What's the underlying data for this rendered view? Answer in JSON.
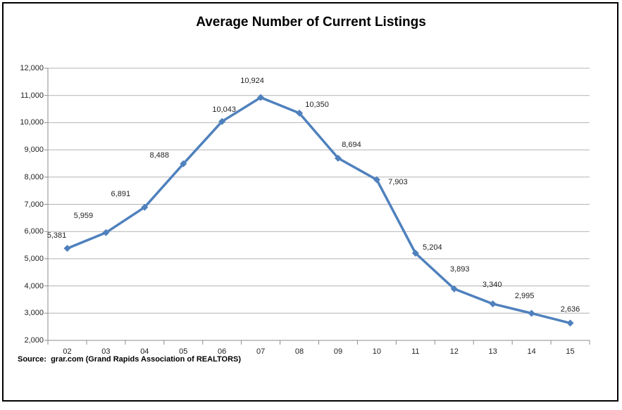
{
  "source": "Source:  grar.com (Grand Rapids Association of REALTORS)",
  "chart_data": {
    "type": "line",
    "title": "Average Number of Current Listings",
    "categories": [
      "02",
      "03",
      "04",
      "05",
      "06",
      "07",
      "08",
      "09",
      "10",
      "11",
      "12",
      "13",
      "14",
      "15"
    ],
    "values": [
      5381,
      5959,
      6891,
      8488,
      10043,
      10924,
      10350,
      8694,
      7903,
      5204,
      3893,
      3340,
      2995,
      2636
    ],
    "data_labels": [
      "5,381",
      "5,959",
      "6,891",
      "8,488",
      "10,043",
      "10,924",
      "10,350",
      "8,694",
      "7,903",
      "5,204",
      "3,893",
      "3,340",
      "2,995",
      "2,636"
    ],
    "xlabel": "",
    "ylabel": "",
    "ylim": [
      2000,
      12000
    ],
    "ytick_step": 1000,
    "ytick_labels": [
      "2,000",
      "3,000",
      "4,000",
      "5,000",
      "6,000",
      "7,000",
      "8,000",
      "9,000",
      "10,000",
      "11,000",
      "12,000"
    ],
    "grid": true,
    "legend": "none",
    "line_color": "#4F81BD",
    "marker": "diamond",
    "gridline_color": "#B3B3B3",
    "axis_color": "#8C8C8C",
    "text_color": "#1f1f1f"
  }
}
